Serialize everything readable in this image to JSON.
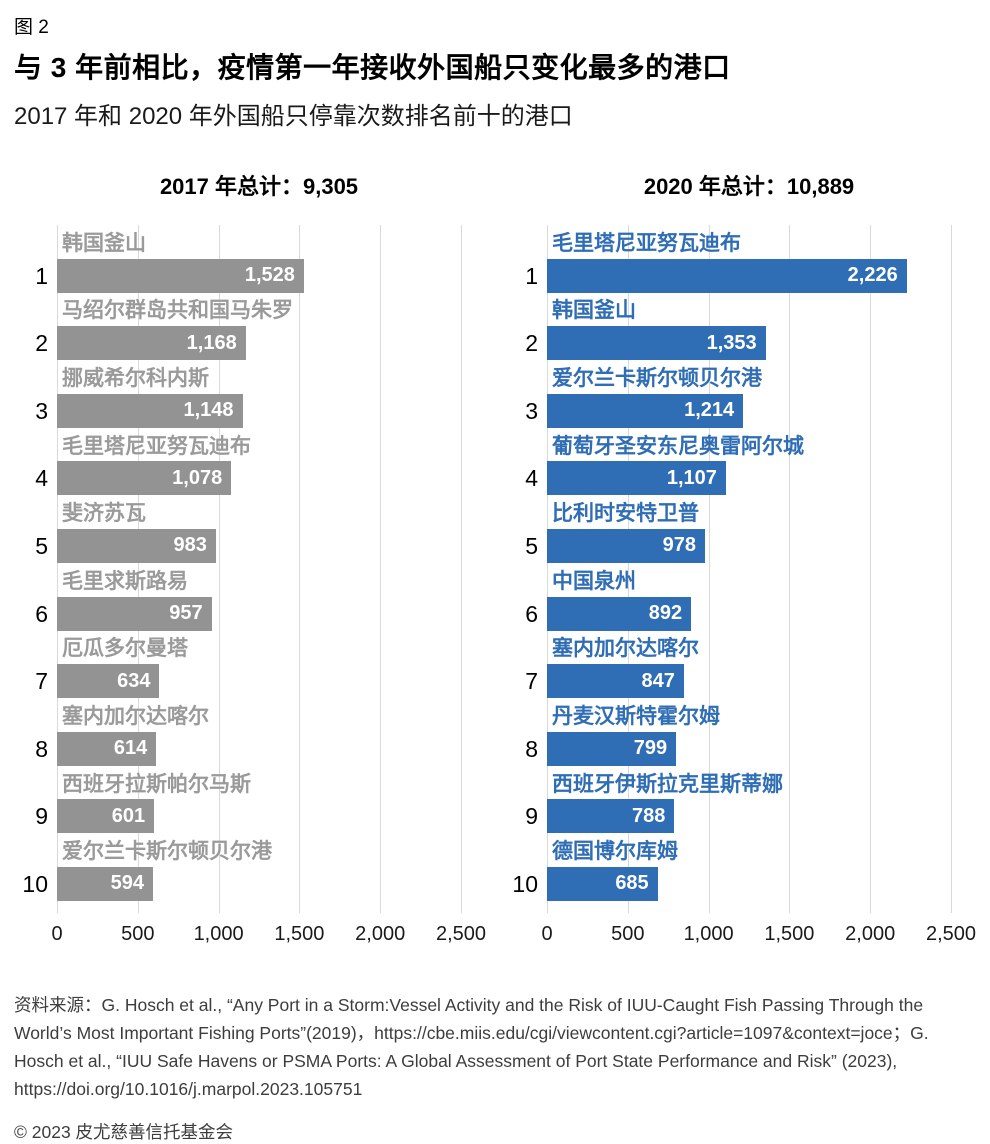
{
  "figure_label": "图 2",
  "title": "与 3 年前相比，疫情第一年接收外国船只变化最多的港口",
  "subtitle": "2017 年和 2020 年外国船只停靠次数排名前十的港口",
  "colors": {
    "gray_bar": "#939393",
    "gray_label": "#9a9a9a",
    "blue_bar": "#2f6db4",
    "blue_label": "#2f6db4",
    "gridline": "#d9d9d9",
    "bar_value_text": "#ffffff"
  },
  "chart_data": [
    {
      "type": "bar",
      "orientation": "horizontal",
      "title": "2017 年总计：9,305",
      "total": 9305,
      "ranks": [
        1,
        2,
        3,
        4,
        5,
        6,
        7,
        8,
        9,
        10
      ],
      "categories": [
        "韩国釜山",
        "马绍尔群岛共和国马朱罗",
        "挪威希尔科内斯",
        "毛里塔尼亚努瓦迪布",
        "斐济苏瓦",
        "毛里求斯路易",
        "厄瓜多尔曼塔",
        "塞内加尔达喀尔",
        "西班牙拉斯帕尔马斯",
        "爱尔兰卡斯尔顿贝尔港"
      ],
      "values": [
        1528,
        1168,
        1148,
        1078,
        983,
        957,
        634,
        614,
        601,
        594
      ],
      "value_labels": [
        "1,528",
        "1,168",
        "1,148",
        "1,078",
        "983",
        "957",
        "634",
        "614",
        "601",
        "594"
      ],
      "xlim": [
        0,
        2500
      ],
      "xticks": [
        "0",
        "500",
        "1,000",
        "1,500",
        "2,000",
        "2,500"
      ],
      "bar_color": "#939393",
      "label_color": "#9a9a9a",
      "grid": true,
      "legend": false
    },
    {
      "type": "bar",
      "orientation": "horizontal",
      "title": "2020 年总计：10,889",
      "total": 10889,
      "ranks": [
        1,
        2,
        3,
        4,
        5,
        6,
        7,
        8,
        9,
        10
      ],
      "categories": [
        "毛里塔尼亚努瓦迪布",
        "韩国釜山",
        "爱尔兰卡斯尔顿贝尔港",
        "葡萄牙圣安东尼奥雷阿尔城",
        "比利时安特卫普",
        "中国泉州",
        "塞内加尔达喀尔",
        "丹麦汉斯特霍尔姆",
        "西班牙伊斯拉克里斯蒂娜",
        "德国博尔库姆"
      ],
      "values": [
        2226,
        1353,
        1214,
        1107,
        978,
        892,
        847,
        799,
        788,
        685
      ],
      "value_labels": [
        "2,226",
        "1,353",
        "1,214",
        "1,107",
        "978",
        "892",
        "847",
        "799",
        "788",
        "685"
      ],
      "xlim": [
        0,
        2500
      ],
      "xticks": [
        "0",
        "500",
        "1,000",
        "1,500",
        "2,000",
        "2,500"
      ],
      "bar_color": "#2f6db4",
      "label_color": "#2f6db4",
      "grid": true,
      "legend": false
    }
  ],
  "source_text": "资料来源：G. Hosch et al., “Any Port in a Storm:Vessel Activity and the Risk of IUU-Caught Fish Passing Through the World’s Most Important Fishing Ports”(2019)，https://cbe.miis.edu/cgi/viewcontent.cgi?article=1097&context=joce；G. Hosch et al., “IUU Safe Havens or PSMA Ports: A Global Assessment of Port State Performance and Risk” (2023), https://doi.org/10.1016/j.marpol.2023.105751",
  "copyright_text": "© 2023 皮尤慈善信托基金会"
}
